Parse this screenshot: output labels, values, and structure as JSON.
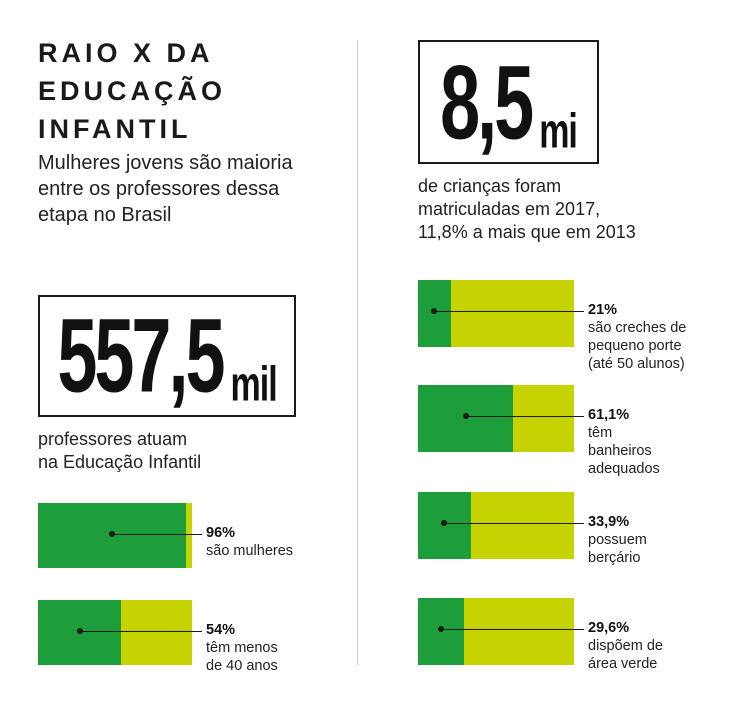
{
  "header": {
    "title_lines": [
      "RAIO X DA",
      "EDUCAÇÃO",
      "INFANTIL"
    ],
    "subtitle": "Mulheres jovens são maioria entre os professores dessa etapa no Brasil"
  },
  "left_stat": {
    "number": "557,5",
    "unit": "mil",
    "caption_lines": [
      "professores atuam",
      "na Educação Infantil"
    ]
  },
  "right_stat": {
    "number": "8,5",
    "unit": "mi",
    "caption_lines": [
      "de crianças foram",
      "matriculadas em 2017,",
      "11,8% a mais que em 2013"
    ]
  },
  "colors": {
    "share": "#1e9e3a",
    "remainder": "#c7d300",
    "text": "#1a1a1a"
  },
  "chart_data": [
    {
      "type": "bar",
      "orientation": "horizontal-stacked-100",
      "items": [
        {
          "value": 96,
          "value_label": "96%",
          "desc_lines": [
            "são mulheres"
          ]
        },
        {
          "value": 54,
          "value_label": "54%",
          "desc_lines": [
            "têm menos",
            "de 40 anos"
          ]
        }
      ]
    },
    {
      "type": "bar",
      "orientation": "horizontal-stacked-100",
      "items": [
        {
          "value": 21,
          "value_label": "21%",
          "desc_lines": [
            "são creches de",
            "pequeno porte",
            "(até 50 alunos)"
          ]
        },
        {
          "value": 61.1,
          "value_label": "61,1%",
          "desc_lines": [
            "têm",
            "banheiros",
            "adequados"
          ]
        },
        {
          "value": 33.9,
          "value_label": "33,9%",
          "desc_lines": [
            "possuem",
            "berçário"
          ]
        },
        {
          "value": 29.6,
          "value_label": "29,6%",
          "desc_lines": [
            "dispõem de",
            "área verde"
          ]
        }
      ]
    }
  ]
}
